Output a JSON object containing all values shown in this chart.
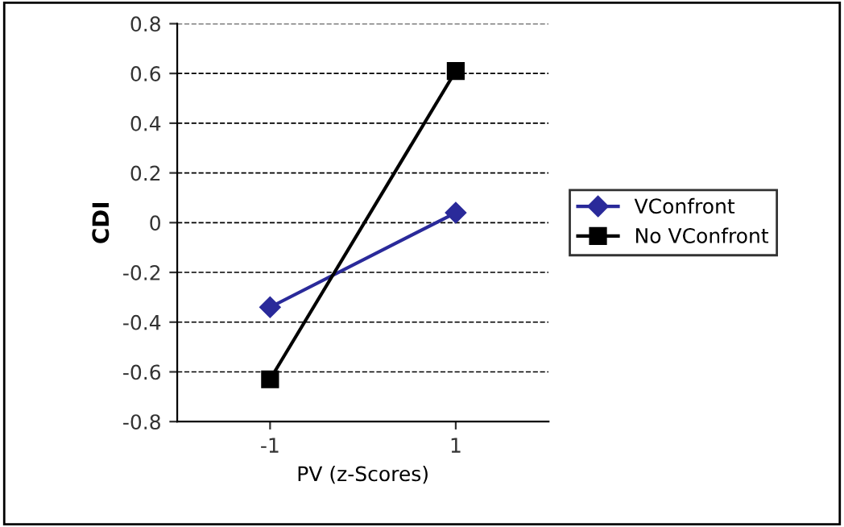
{
  "chart_data": {
    "type": "line",
    "xlabel": "PV (z-Scores)",
    "ylabel": "CDI",
    "categories": [
      "-1",
      "1"
    ],
    "series": [
      {
        "name": "VConfront",
        "color": "#2a2a9a",
        "values": [
          -0.34,
          0.04
        ],
        "marker": "diamond"
      },
      {
        "name": "No VConfront",
        "color": "#000000",
        "values": [
          -0.63,
          0.61
        ],
        "marker": "square"
      }
    ],
    "ylim": [
      -0.8,
      0.8
    ],
    "yticks": [
      -0.8,
      -0.6,
      -0.4,
      -0.2,
      0,
      0.2,
      0.4,
      0.6,
      0.8
    ],
    "grid": "y",
    "legend": "right",
    "line_style": "solid"
  }
}
